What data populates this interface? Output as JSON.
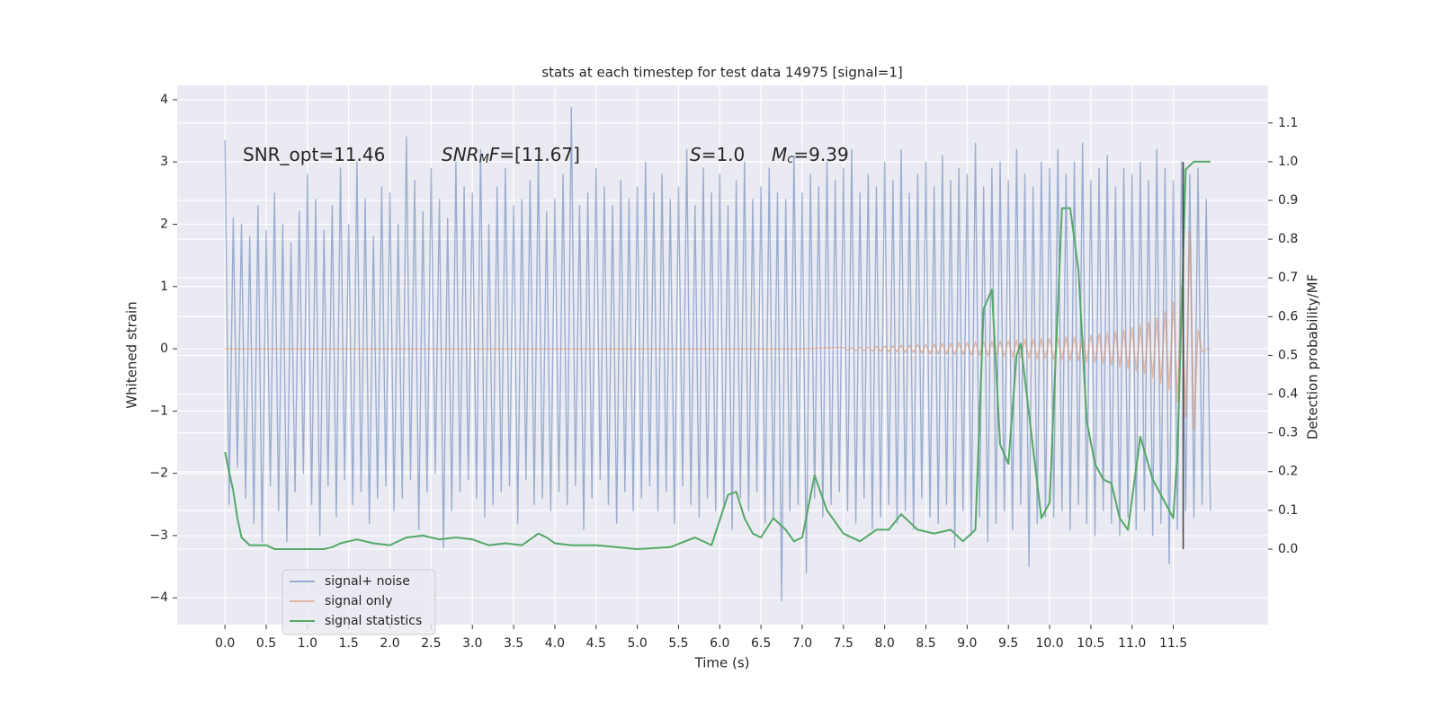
{
  "chart_data": {
    "type": "line",
    "title": "stats at each timestep for test data 14975 [signal=1]",
    "xlabel": "Time (s)",
    "ylabel": "Whitened strain",
    "y2label": "Detection probability/MF",
    "annotations": [
      [
        "SNR_opt=11.46"
      ],
      [
        "SNR",
        "M",
        "F",
        "=[11.67]"
      ],
      [
        "S",
        "=1.0"
      ],
      [
        "M",
        "c",
        "=9.39"
      ]
    ],
    "xlim": [
      -0.58,
      12.65
    ],
    "ylim": [
      -4.43,
      4.23
    ],
    "y2lim": [
      -0.195,
      1.197
    ],
    "xticks": [
      {
        "value": 0,
        "label": "0.0"
      },
      0.5,
      {
        "value": 1,
        "label": "1.0"
      },
      1.5,
      {
        "value": 2,
        "label": "2.0"
      },
      2.5,
      {
        "value": 3,
        "label": "3.0"
      },
      3.5,
      {
        "value": 4,
        "label": "4.0"
      },
      4.5,
      {
        "value": 5,
        "label": "5.0"
      },
      5.5,
      {
        "value": 6,
        "label": "6.0"
      },
      6.5,
      {
        "value": 7,
        "label": "7.0"
      },
      7.5,
      {
        "value": 8,
        "label": "8.0"
      },
      8.5,
      {
        "value": 9,
        "label": "9.0"
      },
      9.5,
      {
        "value": 10,
        "label": "10.0"
      },
      10.5,
      {
        "value": 11,
        "label": "11.0"
      },
      11.5
    ],
    "yticks": [
      {
        "value": -4,
        "label": "−4"
      },
      {
        "value": -3,
        "label": "−3"
      },
      {
        "value": -2,
        "label": "−2"
      },
      {
        "value": -1,
        "label": "−1"
      },
      0,
      1,
      2,
      3,
      4
    ],
    "y2ticks": [
      {
        "value": 0,
        "label": "0.0"
      },
      0.1,
      0.2,
      0.3,
      0.4,
      0.5,
      0.6,
      0.7,
      0.8,
      0.9,
      {
        "value": 1,
        "label": "1.0"
      },
      1.1
    ],
    "grid": true,
    "legend": "lower left",
    "vline": {
      "x": 11.62,
      "y": [
        -3.22,
        3.0
      ],
      "color": "#444444"
    },
    "series": [
      {
        "name": "signal+ noise",
        "color": "#4c72b0",
        "opacity": 0.5,
        "x": [
          0.0,
          0.05,
          0.1,
          0.15,
          0.2,
          0.25,
          0.3,
          0.35,
          0.4,
          0.45,
          0.5,
          0.55,
          0.6,
          0.65,
          0.7,
          0.75,
          0.8,
          0.85,
          0.9,
          0.95,
          1.0,
          1.05,
          1.1,
          1.15,
          1.2,
          1.25,
          1.3,
          1.35,
          1.4,
          1.45,
          1.5,
          1.55,
          1.6,
          1.65,
          1.7,
          1.75,
          1.8,
          1.85,
          1.9,
          1.95,
          2.0,
          2.05,
          2.1,
          2.15,
          2.2,
          2.25,
          2.3,
          2.35,
          2.4,
          2.45,
          2.5,
          2.55,
          2.6,
          2.65,
          2.7,
          2.75,
          2.8,
          2.85,
          2.9,
          2.95,
          3.0,
          3.05,
          3.1,
          3.15,
          3.2,
          3.25,
          3.3,
          3.35,
          3.4,
          3.45,
          3.5,
          3.55,
          3.6,
          3.65,
          3.7,
          3.75,
          3.8,
          3.85,
          3.9,
          3.95,
          4.0,
          4.05,
          4.1,
          4.15,
          4.2,
          4.25,
          4.3,
          4.35,
          4.4,
          4.45,
          4.5,
          4.55,
          4.6,
          4.65,
          4.7,
          4.75,
          4.8,
          4.85,
          4.9,
          4.95,
          5.0,
          5.05,
          5.1,
          5.15,
          5.2,
          5.25,
          5.3,
          5.35,
          5.4,
          5.45,
          5.5,
          5.55,
          5.6,
          5.65,
          5.7,
          5.75,
          5.8,
          5.85,
          5.9,
          5.95,
          6.0,
          6.05,
          6.1,
          6.15,
          6.2,
          6.25,
          6.3,
          6.35,
          6.4,
          6.45,
          6.5,
          6.55,
          6.6,
          6.65,
          6.7,
          6.75,
          6.8,
          6.85,
          6.9,
          6.95,
          7.0,
          7.05,
          7.1,
          7.15,
          7.2,
          7.25,
          7.3,
          7.35,
          7.4,
          7.45,
          7.5,
          7.55,
          7.6,
          7.65,
          7.7,
          7.75,
          7.8,
          7.85,
          7.9,
          7.95,
          8.0,
          8.05,
          8.1,
          8.15,
          8.2,
          8.25,
          8.3,
          8.35,
          8.4,
          8.45,
          8.5,
          8.55,
          8.6,
          8.65,
          8.7,
          8.75,
          8.8,
          8.85,
          8.9,
          8.95,
          9.0,
          9.05,
          9.1,
          9.15,
          9.2,
          9.25,
          9.3,
          9.35,
          9.4,
          9.45,
          9.5,
          9.55,
          9.6,
          9.65,
          9.7,
          9.75,
          9.8,
          9.85,
          9.9,
          9.95,
          10.0,
          10.05,
          10.1,
          10.15,
          10.2,
          10.25,
          10.3,
          10.35,
          10.4,
          10.45,
          10.5,
          10.55,
          10.6,
          10.65,
          10.7,
          10.75,
          10.8,
          10.85,
          10.9,
          10.95,
          11.0,
          11.05,
          11.1,
          11.15,
          11.2,
          11.25,
          11.3,
          11.35,
          11.4,
          11.45,
          11.5,
          11.55,
          11.6,
          11.65,
          11.7,
          11.75,
          11.8,
          11.85,
          11.9,
          11.95
        ],
        "values": [
          3.35,
          -2.5,
          2.1,
          -1.9,
          2.0,
          -2.4,
          1.8,
          -2.8,
          2.3,
          -3.1,
          1.9,
          -2.2,
          2.5,
          -2.6,
          2.0,
          -3.1,
          1.7,
          -2.3,
          2.2,
          -2.0,
          2.8,
          -2.5,
          2.4,
          -3.0,
          1.9,
          -2.2,
          2.3,
          -2.7,
          2.9,
          -2.1,
          2.0,
          -2.5,
          3.0,
          -2.3,
          2.4,
          -2.8,
          1.8,
          -2.4,
          2.6,
          -2.2,
          2.5,
          -2.6,
          2.0,
          -2.4,
          3.4,
          -2.1,
          2.7,
          -2.9,
          2.2,
          -2.3,
          2.9,
          -2.0,
          2.4,
          -3.2,
          2.1,
          -2.6,
          3.0,
          -2.3,
          2.6,
          -2.1,
          2.5,
          -2.4,
          3.2,
          -2.7,
          2.0,
          -2.5,
          2.6,
          -2.3,
          2.9,
          -2.2,
          2.3,
          -2.8,
          2.4,
          -2.1,
          2.7,
          -2.5,
          3.1,
          -2.4,
          2.2,
          -2.6,
          2.4,
          -2.3,
          2.8,
          -2.5,
          3.87,
          -2.2,
          2.3,
          -2.9,
          2.5,
          -2.4,
          2.9,
          -2.1,
          2.6,
          -2.5,
          2.3,
          -2.8,
          2.7,
          -2.3,
          2.4,
          -2.6,
          2.6,
          -2.4,
          3.0,
          -2.2,
          2.5,
          -2.6,
          2.8,
          -2.3,
          2.4,
          -2.8,
          2.6,
          -2.2,
          3.2,
          -2.5,
          2.3,
          -2.7,
          2.9,
          -2.4,
          2.5,
          -2.6,
          2.8,
          -2.5,
          2.3,
          -2.9,
          2.7,
          -2.4,
          3.0,
          -2.6,
          2.4,
          -2.3,
          2.6,
          -2.8,
          2.9,
          -2.7,
          2.5,
          -4.05,
          2.4,
          -2.6,
          3.1,
          -2.5,
          2.5,
          -3.6,
          2.8,
          -2.4,
          2.6,
          -2.7,
          3.0,
          -2.5,
          2.7,
          -2.3,
          2.9,
          -2.6,
          3.2,
          -2.8,
          2.5,
          -2.4,
          2.8,
          -2.9,
          2.6,
          -2.7,
          3.0,
          -2.5,
          2.7,
          -2.8,
          3.2,
          -2.6,
          2.5,
          -2.9,
          2.8,
          -2.4,
          3.0,
          -2.7,
          2.6,
          -2.8,
          3.1,
          -2.5,
          2.7,
          -3.2,
          2.9,
          -2.6,
          2.8,
          -3.0,
          3.3,
          -2.7,
          2.6,
          -3.1,
          2.9,
          -2.8,
          3.0,
          -2.6,
          2.7,
          -2.9,
          3.2,
          -2.5,
          2.8,
          -3.5,
          2.6,
          -2.8,
          3.0,
          -2.7,
          2.9,
          -2.7,
          3.2,
          -2.6,
          2.8,
          -2.9,
          3.0,
          -2.5,
          3.3,
          -2.8,
          2.7,
          -3.0,
          2.9,
          -2.6,
          3.1,
          -2.8,
          2.6,
          -3.0,
          2.9,
          -2.7,
          2.8,
          -2.9,
          3.0,
          -2.6,
          2.7,
          -3.0,
          3.2,
          -2.8,
          2.9,
          -3.45,
          2.7,
          -2.9,
          3.0,
          -2.6,
          2.8,
          -2.7,
          2.9,
          -2.5,
          2.4,
          -2.6
        ]
      },
      {
        "name": "signal only",
        "color": "#dd8452",
        "opacity": 0.5,
        "x": [
          0.0,
          7.0,
          7.5,
          7.55,
          7.6,
          7.65,
          7.7,
          7.75,
          7.8,
          7.85,
          7.9,
          7.95,
          8.0,
          8.05,
          8.1,
          8.15,
          8.2,
          8.25,
          8.3,
          8.35,
          8.4,
          8.45,
          8.5,
          8.55,
          8.6,
          8.65,
          8.7,
          8.75,
          8.8,
          8.85,
          8.9,
          8.95,
          9.0,
          9.05,
          9.1,
          9.15,
          9.2,
          9.25,
          9.3,
          9.35,
          9.4,
          9.45,
          9.5,
          9.55,
          9.6,
          9.65,
          9.7,
          9.75,
          9.8,
          9.85,
          9.9,
          9.95,
          10.0,
          10.05,
          10.1,
          10.15,
          10.2,
          10.25,
          10.3,
          10.35,
          10.4,
          10.45,
          10.5,
          10.55,
          10.6,
          10.65,
          10.7,
          10.75,
          10.8,
          10.85,
          10.9,
          10.95,
          11.0,
          11.05,
          11.1,
          11.15,
          11.2,
          11.25,
          11.3,
          11.35,
          11.4,
          11.45,
          11.5,
          11.55,
          11.6,
          11.65,
          11.7,
          11.75,
          11.8,
          11.85,
          11.9,
          11.95
        ],
        "values": [
          0,
          0,
          0.02,
          -0.02,
          0.02,
          -0.03,
          0.03,
          -0.03,
          0.03,
          -0.04,
          0.04,
          -0.04,
          0.05,
          -0.05,
          0.05,
          -0.05,
          0.06,
          -0.06,
          0.06,
          -0.06,
          0.07,
          -0.07,
          0.07,
          -0.08,
          0.08,
          -0.08,
          0.09,
          -0.09,
          0.09,
          -0.1,
          0.1,
          -0.1,
          0.1,
          -0.11,
          0.11,
          -0.11,
          0.12,
          -0.12,
          0.12,
          -0.12,
          0.13,
          -0.13,
          0.13,
          -0.14,
          0.14,
          -0.14,
          0.15,
          -0.15,
          0.15,
          -0.16,
          0.16,
          -0.16,
          0.17,
          -0.17,
          0.18,
          -0.18,
          0.19,
          -0.19,
          0.2,
          -0.2,
          0.21,
          -0.21,
          0.22,
          -0.23,
          0.24,
          -0.25,
          0.26,
          -0.27,
          0.28,
          -0.29,
          0.3,
          -0.32,
          0.34,
          -0.36,
          0.38,
          -0.4,
          0.43,
          -0.46,
          0.5,
          -0.55,
          0.6,
          -0.66,
          0.75,
          -0.85,
          1.0,
          -1.1,
          1.9,
          -1.3,
          0.3,
          -0.05,
          0,
          0
        ]
      },
      {
        "name": "signal statistics",
        "color": "#55a868",
        "opacity": 1,
        "axis": "y2",
        "x": [
          0.0,
          0.05,
          0.1,
          0.15,
          0.2,
          0.3,
          0.4,
          0.5,
          0.6,
          0.8,
          1.0,
          1.1,
          1.2,
          1.3,
          1.4,
          1.6,
          1.8,
          2.0,
          2.2,
          2.4,
          2.6,
          2.8,
          3.0,
          3.2,
          3.4,
          3.6,
          3.8,
          3.9,
          4.0,
          4.2,
          4.5,
          5.0,
          5.4,
          5.7,
          5.9,
          6.1,
          6.2,
          6.3,
          6.4,
          6.5,
          6.65,
          6.8,
          6.9,
          7.0,
          7.15,
          7.3,
          7.5,
          7.7,
          7.9,
          8.05,
          8.2,
          8.4,
          8.6,
          8.8,
          8.95,
          9.1,
          9.2,
          9.3,
          9.4,
          9.5,
          9.6,
          9.65,
          9.75,
          9.9,
          10.0,
          10.15,
          10.25,
          10.35,
          10.45,
          10.55,
          10.65,
          10.75,
          10.85,
          10.95,
          11.1,
          11.25,
          11.4,
          11.5,
          11.55,
          11.65,
          11.75,
          11.95
        ],
        "values": [
          0.25,
          0.2,
          0.15,
          0.08,
          0.03,
          0.01,
          0.01,
          0.01,
          0.0,
          0.0,
          0.0,
          0.0,
          0.0,
          0.005,
          0.015,
          0.025,
          0.015,
          0.01,
          0.03,
          0.035,
          0.025,
          0.03,
          0.025,
          0.01,
          0.015,
          0.01,
          0.04,
          0.03,
          0.015,
          0.01,
          0.01,
          0.0,
          0.005,
          0.03,
          0.01,
          0.14,
          0.148,
          0.08,
          0.04,
          0.03,
          0.08,
          0.05,
          0.02,
          0.03,
          0.19,
          0.1,
          0.04,
          0.02,
          0.05,
          0.05,
          0.09,
          0.05,
          0.04,
          0.05,
          0.02,
          0.05,
          0.62,
          0.67,
          0.27,
          0.22,
          0.5,
          0.53,
          0.35,
          0.08,
          0.12,
          0.88,
          0.88,
          0.72,
          0.33,
          0.22,
          0.18,
          0.17,
          0.08,
          0.05,
          0.29,
          0.18,
          0.12,
          0.08,
          0.25,
          0.98,
          1.0,
          1.0
        ]
      }
    ]
  }
}
